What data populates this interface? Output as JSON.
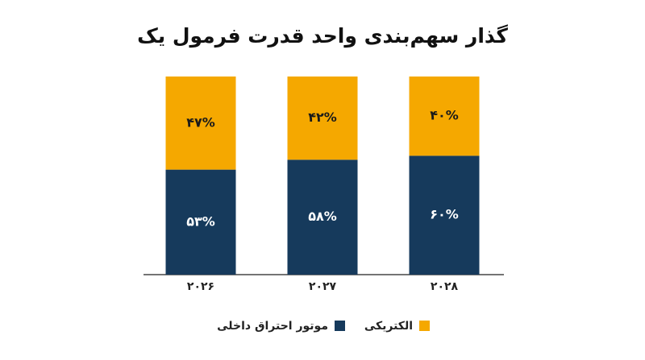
{
  "chart_data": {
    "type": "stacked_bar",
    "title": "گذار سهم‌بندی واحد قدرت فرمول یک",
    "categories": [
      "۲۰۲۶",
      "۲۰۲۷",
      "۲۰۲۸"
    ],
    "series": [
      {
        "name": "موتور احتراق داخلی",
        "color": "#163a5c",
        "values": [
          53,
          58,
          60
        ],
        "value_labels": [
          "۵۳%",
          "۵۸%",
          "۶۰%"
        ]
      },
      {
        "name": "الکتریکی",
        "color": "#f5a800",
        "values": [
          47,
          42,
          40
        ],
        "value_labels": [
          "۴۷%",
          "۴۲%",
          "۴۰%"
        ]
      }
    ]
  }
}
